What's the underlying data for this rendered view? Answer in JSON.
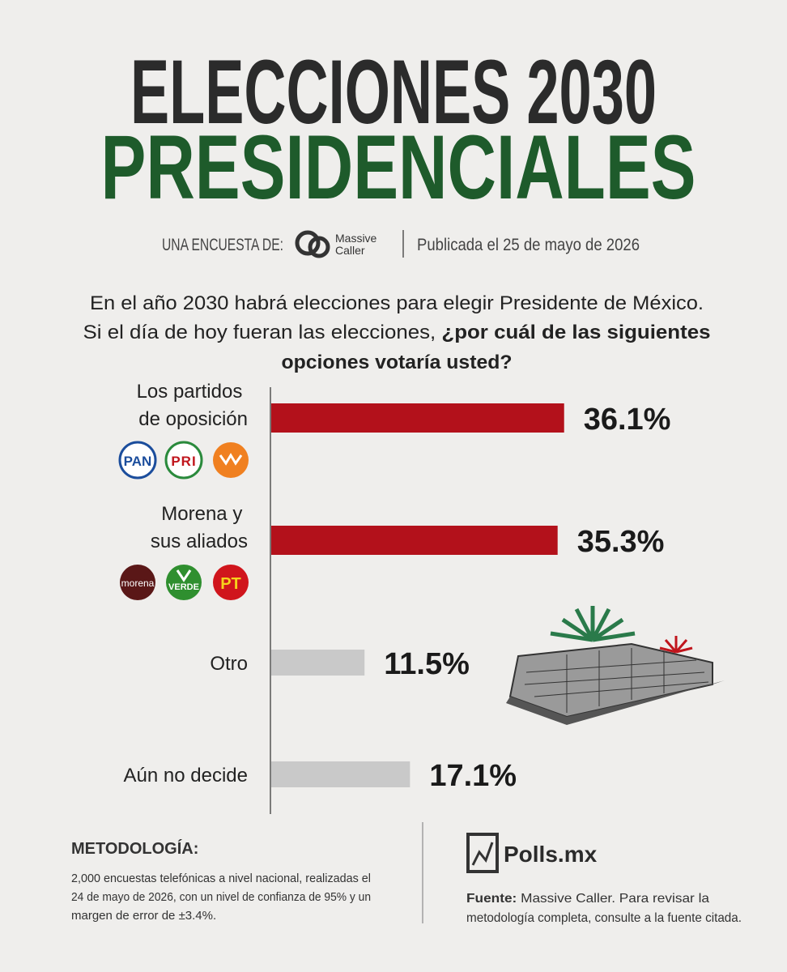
{
  "header": {
    "title_line1": "ELECCIONES 2030",
    "title_line2": "PRESIDENCIALES",
    "survey_by": "UNA ENCUESTA DE:",
    "pollster_logo": [
      "Massive",
      "Caller"
    ],
    "published": "Publicada el 25 de mayo de 2026"
  },
  "question": {
    "line1": "En el año 2030 habrá elecciones para elegir Presidente de México.",
    "line2_regular": "Si el día de hoy fueran las elecciones, ",
    "line2_bold": "¿por cuál de las siguientes",
    "line3_bold": "opciones votaría usted?"
  },
  "logos": {
    "opposition": [
      "PAN",
      "PRI"
    ],
    "ruling": [
      "morena",
      "VERDE",
      "PT"
    ]
  },
  "chart_data": {
    "type": "bar",
    "orientation": "horizontal",
    "categories": [
      "Los partidos de oposición",
      "Morena y sus aliados",
      "Otro",
      "Aún no decide"
    ],
    "values": [
      36.1,
      35.3,
      11.5,
      17.1
    ],
    "value_labels": [
      "36.1%",
      "35.3%",
      "11.5%",
      "17.1%"
    ],
    "colors": [
      "#b3111b",
      "#b3111b",
      "#c9c9c9",
      "#c9c9c9"
    ]
  },
  "footer": {
    "methodology_title": "METODOLOGÍA:",
    "methodology_lines": [
      "2,000 encuestas telefónicas a nivel nacional, realizadas el",
      "24 de mayo de 2026, con un nivel de confianza de 95% y un",
      "margen de error de ±3.4%."
    ],
    "brand": "Polls.mx",
    "source_label": "Fuente:",
    "source_line1": " Massive Caller. Para revisar la",
    "source_line2": "metodología completa, consulte a la fuente citada."
  }
}
